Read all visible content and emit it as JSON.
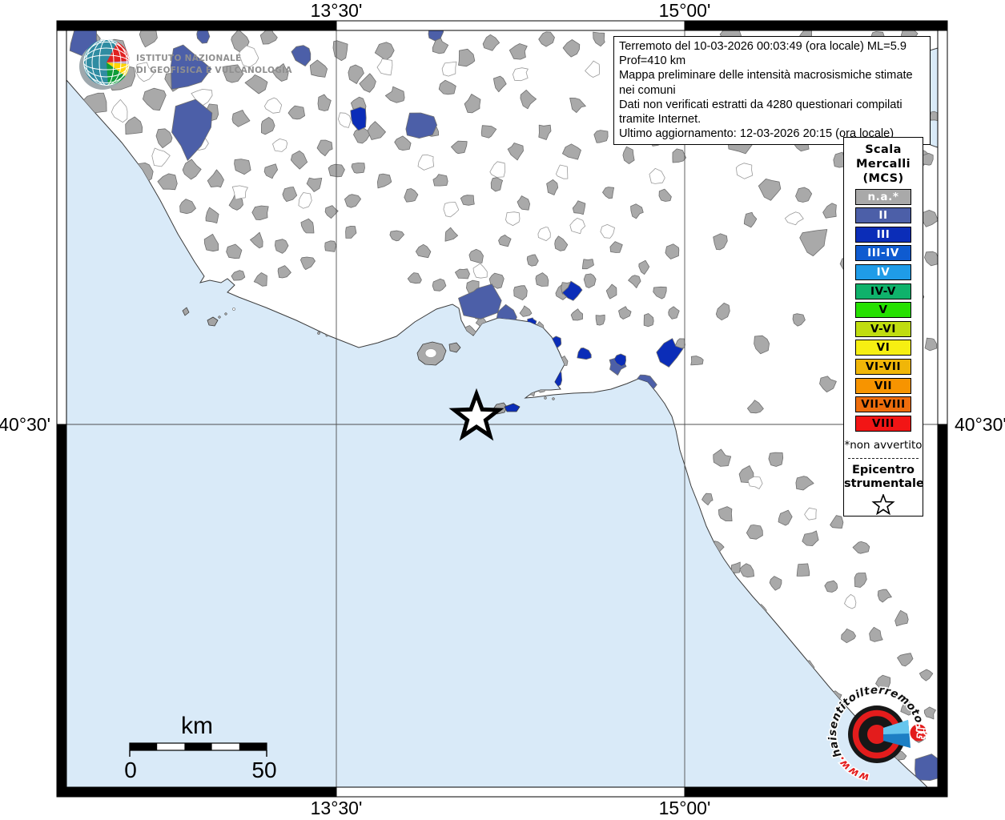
{
  "info_box": {
    "lines": [
      "Terremoto del 10-03-2026 00:03:49 (ora locale) ML=5.9 Prof=410 km",
      "Mappa preliminare delle intensità macrosismiche stimate nei comuni",
      "Dati non verificati estratti da 4280 questionari compilati tramite Internet.",
      "Ultimo aggiornamento: 12-03-2026 20:15 (ora locale)"
    ]
  },
  "legend": {
    "title_lines": [
      "Scala",
      "Mercalli",
      "(MCS)"
    ],
    "items": [
      {
        "key": "na",
        "label": "n.a.*",
        "color": "#a9a9a9",
        "text": "#ffffff"
      },
      {
        "key": "ii",
        "label": "II",
        "color": "#4c5fa8",
        "text": "#ffffff"
      },
      {
        "key": "iii",
        "label": "III",
        "color": "#0b2db8",
        "text": "#ffffff"
      },
      {
        "key": "iii-iv",
        "label": "III-IV",
        "color": "#0f5bd0",
        "text": "#ffffff"
      },
      {
        "key": "iv",
        "label": "IV",
        "color": "#1f9ce8",
        "text": "#ffffff"
      },
      {
        "key": "iv-v",
        "label": "IV-V",
        "color": "#0fb26b",
        "text": "#000000"
      },
      {
        "key": "v",
        "label": "V",
        "color": "#26e000",
        "text": "#000000"
      },
      {
        "key": "v-vi",
        "label": "V-VI",
        "color": "#c0dd10",
        "text": "#000000"
      },
      {
        "key": "vi",
        "label": "VI",
        "color": "#f6ef12",
        "text": "#000000"
      },
      {
        "key": "vi-vii",
        "label": "VI-VII",
        "color": "#f0b608",
        "text": "#000000"
      },
      {
        "key": "vii",
        "label": "VII",
        "color": "#f79400",
        "text": "#000000"
      },
      {
        "key": "vii-viii",
        "label": "VII-VIII",
        "color": "#ee6d0c",
        "text": "#000000"
      },
      {
        "key": "viii",
        "label": "VIII",
        "color": "#f21515",
        "text": "#000000"
      }
    ],
    "footnote": "*non avvertito",
    "epicenter_title_lines": [
      "Epicentro",
      "strumentale"
    ]
  },
  "map_labels": {
    "top_left": "13°30'",
    "top_right": "15°00'",
    "bottom_left": "13°30'",
    "bottom_right": "15°00'",
    "left": "40°30'",
    "right": "40°30'"
  },
  "scale_bar": {
    "title": "km",
    "start_label": "0",
    "end_label": "50"
  },
  "ingv_logo": {
    "line1": "ISTITUTO NAZIONALE",
    "line2": "DI GEOFISICA E VULCANOLOGIA"
  },
  "site_logo": {
    "www": "www.",
    "domain": "haisentitoilterremoto",
    "tld": ".it",
    "question_mark": "?"
  },
  "colors": {
    "sea": "#d9eaf8",
    "land": "#ffffff",
    "coast": "#3c3c3c",
    "gridline": "#4f4f4f",
    "frame": "#000000",
    "logo_red": "#e31c1c",
    "logo_globe_teal": "#2f8ca2",
    "cone_blue_dark": "#1c7fc4",
    "cone_blue_light": "#66c6ee"
  }
}
